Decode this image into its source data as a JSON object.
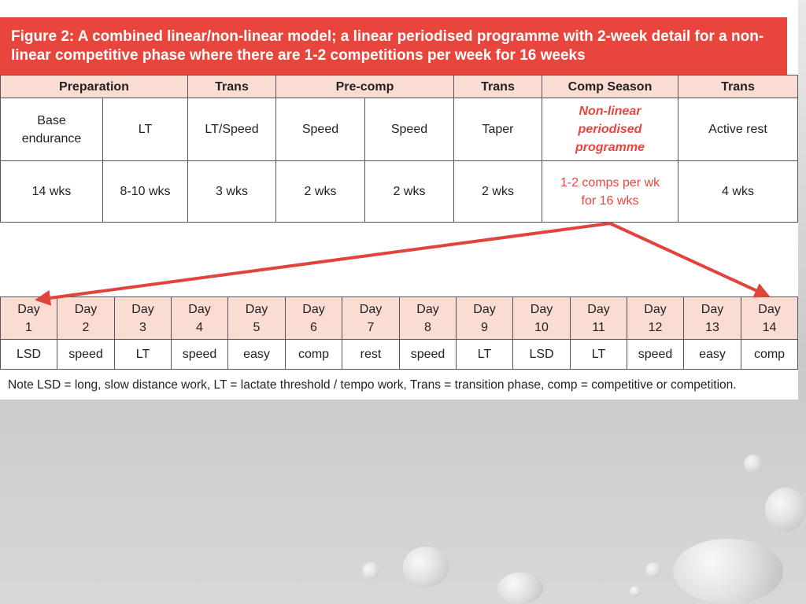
{
  "figure": {
    "title": "Figure 2: A combined linear/non-linear model; a linear periodised programme with 2-week detail for a non-linear competitive phase where there are 1-2 competitions per week for 16 weeks",
    "phases": [
      "Preparation",
      "Trans",
      "Pre-comp",
      "Trans",
      "Comp Season",
      "Trans"
    ],
    "focus": [
      "Base endurance",
      "LT",
      "LT/Speed",
      "Speed",
      "Speed",
      "Taper",
      "Non-linear periodised programme",
      "Active rest"
    ],
    "duration": [
      "14 wks",
      "8-10 wks",
      "3 wks",
      "2 wks",
      "2 wks",
      "2 wks",
      "1-2 comps per wk for 16 wks",
      "4 wks"
    ],
    "days": [
      "Day 1",
      "Day 2",
      "Day 3",
      "Day 4",
      "Day 5",
      "Day 6",
      "Day 7",
      "Day 8",
      "Day 9",
      "Day 10",
      "Day 11",
      "Day 12",
      "Day 13",
      "Day 14"
    ],
    "activities": [
      "LSD",
      "speed",
      "LT",
      "speed",
      "easy",
      "comp",
      "rest",
      "speed",
      "LT",
      "LSD",
      "LT",
      "speed",
      "easy",
      "comp"
    ],
    "note": "Note LSD = long, slow distance work, LT = lactate threshold / tempo work, Trans = transition phase, comp = competitive or competition."
  }
}
